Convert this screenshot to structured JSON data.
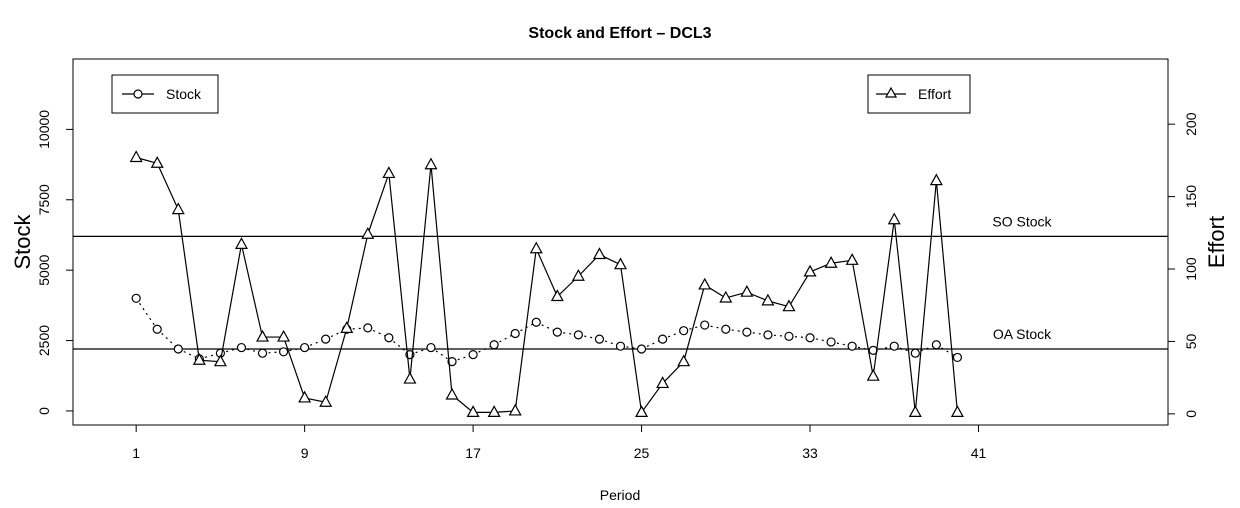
{
  "chart_data": {
    "type": "line",
    "title": "Stock and Effort –  DCL3",
    "xlabel": "Period",
    "ylabel_left": "Stock",
    "ylabel_right": "Effort",
    "xlim": [
      -2,
      50
    ],
    "ylim_left": [
      -500,
      12500
    ],
    "ylim_right": [
      -7.7,
      245
    ],
    "x_ticks": [
      1,
      9,
      17,
      25,
      33,
      41
    ],
    "y_ticks_left": [
      0,
      2500,
      5000,
      7500,
      10000
    ],
    "y_ticks_right": [
      0,
      50,
      100,
      150,
      200
    ],
    "x": [
      1,
      2,
      3,
      4,
      5,
      6,
      7,
      8,
      9,
      10,
      11,
      12,
      13,
      14,
      15,
      16,
      17,
      18,
      19,
      20,
      21,
      22,
      23,
      24,
      25,
      26,
      27,
      28,
      29,
      30,
      31,
      32,
      33,
      34,
      35,
      36,
      37,
      38,
      39,
      40
    ],
    "series": [
      {
        "name": "Stock",
        "axis": "left",
        "marker": "circle",
        "line": "dotted",
        "values": [
          4000,
          2900,
          2200,
          1850,
          2050,
          2250,
          2050,
          2100,
          2250,
          2550,
          2900,
          2950,
          2600,
          2000,
          2250,
          1750,
          2000,
          2350,
          2750,
          3150,
          2800,
          2700,
          2550,
          2300,
          2200,
          2550,
          2850,
          3050,
          2900,
          2800,
          2700,
          2650,
          2600,
          2450,
          2300,
          2150,
          2300,
          2050,
          2350,
          1900
        ]
      },
      {
        "name": "Effort",
        "axis": "right",
        "marker": "triangle",
        "line": "solid",
        "values": [
          177,
          173,
          141,
          37,
          36,
          117,
          53,
          53,
          11,
          8,
          59,
          124,
          166,
          24,
          172,
          13,
          1,
          1,
          2,
          114,
          81,
          95,
          110,
          103,
          1,
          21,
          36,
          89,
          80,
          84,
          78,
          74,
          98,
          104,
          106,
          26,
          134,
          1,
          161,
          1
        ]
      }
    ],
    "hlines": [
      {
        "label": "SO Stock",
        "value": 6200,
        "axis": "left"
      },
      {
        "label": "OA Stock",
        "value": 2200,
        "axis": "left"
      }
    ],
    "legend": [
      {
        "label": "Stock",
        "marker": "circle",
        "placement": "top-left"
      },
      {
        "label": "Effort",
        "marker": "triangle",
        "placement": "top-right"
      }
    ],
    "grid": false
  }
}
